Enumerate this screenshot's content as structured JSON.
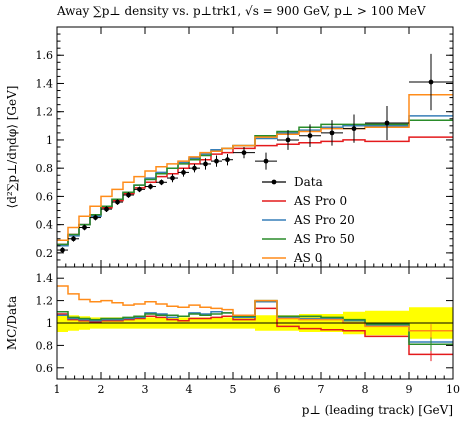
{
  "chart_data": [
    {
      "panel": "main",
      "type": "line",
      "title": "Away ∑p⊥ density vs. p⊥trk1, √s = 900 GeV, p⊥ > 100 MeV",
      "ylabel": "⟨d²∑p⊥/dηdφ⟩ [GeV]",
      "xlim": [
        1,
        10
      ],
      "ylim": [
        0.1,
        1.8
      ],
      "y_ticks": [
        0.2,
        0.4,
        0.6,
        0.8,
        1,
        1.2,
        1.4,
        1.6
      ],
      "legend_position": "right-middle",
      "bin_edges": [
        1,
        1.25,
        1.5,
        1.75,
        2,
        2.25,
        2.5,
        2.75,
        3,
        3.25,
        3.5,
        3.75,
        4,
        4.25,
        4.5,
        4.75,
        5,
        5.5,
        6,
        6.5,
        7,
        7.5,
        8,
        9,
        10
      ],
      "data": {
        "name": "Data",
        "color": "#000000",
        "x": [
          1.125,
          1.375,
          1.625,
          1.875,
          2.125,
          2.375,
          2.625,
          2.875,
          3.125,
          3.375,
          3.625,
          3.875,
          4.125,
          4.375,
          4.625,
          4.875,
          5.25,
          5.75,
          6.25,
          6.75,
          7.25,
          7.75,
          8.5,
          9.5
        ],
        "y": [
          0.22,
          0.3,
          0.38,
          0.45,
          0.51,
          0.56,
          0.61,
          0.65,
          0.67,
          0.7,
          0.73,
          0.77,
          0.8,
          0.83,
          0.85,
          0.86,
          0.91,
          0.85,
          1.0,
          1.03,
          1.05,
          1.08,
          1.12,
          1.41
        ],
        "yerr": [
          0.02,
          0.02,
          0.02,
          0.02,
          0.02,
          0.02,
          0.02,
          0.02,
          0.02,
          0.02,
          0.03,
          0.03,
          0.03,
          0.04,
          0.04,
          0.04,
          0.04,
          0.06,
          0.07,
          0.08,
          0.09,
          0.1,
          0.12,
          0.2
        ]
      },
      "series": [
        {
          "name": "AS Pro 0",
          "color": "#e41a1c",
          "values": [
            0.26,
            0.33,
            0.4,
            0.47,
            0.52,
            0.57,
            0.62,
            0.66,
            0.7,
            0.74,
            0.76,
            0.8,
            0.83,
            0.86,
            0.9,
            0.91,
            0.94,
            0.96,
            0.97,
            0.98,
            0.99,
            1.0,
            0.99,
            1.02
          ]
        },
        {
          "name": "AS Pro 20",
          "color": "#377eb8",
          "values": [
            0.25,
            0.32,
            0.4,
            0.46,
            0.53,
            0.58,
            0.63,
            0.68,
            0.73,
            0.77,
            0.8,
            0.84,
            0.87,
            0.9,
            0.93,
            0.94,
            0.96,
            1.01,
            1.05,
            1.07,
            1.09,
            1.1,
            1.1,
            1.17
          ]
        },
        {
          "name": "AS Pro 50",
          "color": "#2a8c2a",
          "values": [
            0.26,
            0.33,
            0.4,
            0.47,
            0.53,
            0.58,
            0.63,
            0.68,
            0.72,
            0.76,
            0.8,
            0.83,
            0.86,
            0.89,
            0.92,
            0.94,
            0.96,
            1.03,
            1.06,
            1.09,
            1.11,
            1.11,
            1.11,
            1.14
          ]
        },
        {
          "name": "AS 0",
          "color": "#ff8c1a",
          "values": [
            0.29,
            0.38,
            0.46,
            0.53,
            0.6,
            0.65,
            0.7,
            0.74,
            0.78,
            0.81,
            0.83,
            0.85,
            0.88,
            0.91,
            0.92,
            0.94,
            0.96,
            1.02,
            1.04,
            1.06,
            1.08,
            1.08,
            1.09,
            1.32
          ]
        }
      ]
    },
    {
      "panel": "ratio",
      "type": "line",
      "ylabel": "MC/Data",
      "xlabel": "p⊥ (leading track) [GeV]",
      "xlim": [
        1,
        10
      ],
      "ylim": [
        0.5,
        1.5
      ],
      "y_ticks": [
        0.6,
        0.8,
        1,
        1.2,
        1.4
      ],
      "x_ticks": [
        1,
        2,
        3,
        4,
        5,
        6,
        7,
        8,
        9,
        10
      ],
      "data_band": {
        "color": "#ffff00",
        "lower": [
          0.92,
          0.93,
          0.94,
          0.95,
          0.95,
          0.95,
          0.95,
          0.95,
          0.95,
          0.95,
          0.95,
          0.95,
          0.95,
          0.95,
          0.95,
          0.95,
          0.95,
          0.93,
          0.93,
          0.92,
          0.92,
          0.9,
          0.89,
          0.86
        ],
        "upper": [
          1.08,
          1.07,
          1.06,
          1.05,
          1.05,
          1.05,
          1.05,
          1.05,
          1.05,
          1.05,
          1.05,
          1.05,
          1.05,
          1.05,
          1.05,
          1.05,
          1.05,
          1.07,
          1.07,
          1.08,
          1.08,
          1.1,
          1.11,
          1.14
        ]
      },
      "series": [
        {
          "name": "AS Pro 0",
          "color": "#e41a1c",
          "values": [
            1.08,
            1.03,
            1.02,
            1.01,
            1.02,
            1.02,
            1.03,
            1.04,
            1.06,
            1.05,
            1.03,
            1.02,
            1.04,
            1.04,
            1.05,
            1.06,
            1.03,
            1.13,
            0.97,
            0.95,
            0.94,
            0.93,
            0.88,
            0.72
          ]
        },
        {
          "name": "AS Pro 20",
          "color": "#377eb8",
          "values": [
            1.07,
            1.04,
            1.03,
            1.02,
            1.03,
            1.03,
            1.04,
            1.05,
            1.09,
            1.08,
            1.05,
            1.06,
            1.09,
            1.08,
            1.1,
            1.09,
            1.05,
            1.19,
            1.05,
            1.04,
            1.04,
            1.02,
            0.98,
            0.83
          ]
        },
        {
          "name": "AS Pro 50",
          "color": "#2a8c2a",
          "values": [
            1.1,
            1.05,
            1.04,
            1.03,
            1.04,
            1.04,
            1.05,
            1.06,
            1.08,
            1.07,
            1.07,
            1.06,
            1.08,
            1.07,
            1.08,
            1.09,
            1.06,
            1.2,
            1.06,
            1.06,
            1.05,
            1.03,
            0.99,
            0.81
          ]
        },
        {
          "name": "AS 0",
          "color": "#ff8c1a",
          "values": [
            1.33,
            1.26,
            1.21,
            1.19,
            1.2,
            1.18,
            1.16,
            1.17,
            1.19,
            1.17,
            1.15,
            1.14,
            1.16,
            1.14,
            1.13,
            1.12,
            1.07,
            1.2,
            1.04,
            1.03,
            1.03,
            1.0,
            0.97,
            0.93
          ]
        }
      ]
    }
  ]
}
